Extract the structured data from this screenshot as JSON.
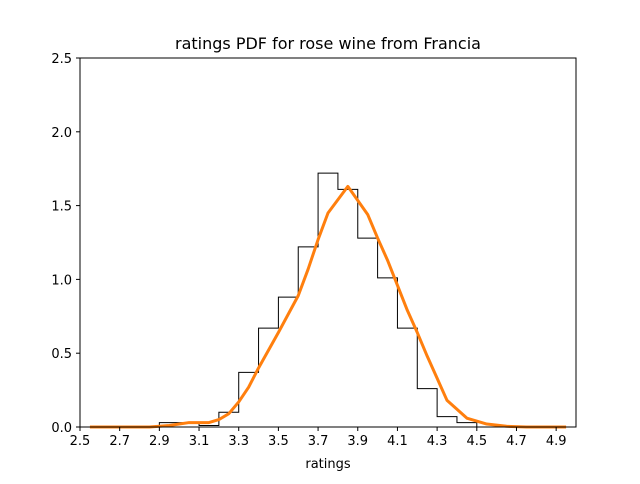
{
  "chart_data": {
    "type": "histogram+line",
    "title": "ratings PDF for rose wine from Francia",
    "xlabel": "ratings",
    "ylabel": "",
    "xlim": [
      2.5,
      5.0
    ],
    "ylim": [
      0,
      2.5
    ],
    "x_ticks": [
      "2.5",
      "2.7",
      "2.9",
      "3.1",
      "3.3",
      "3.5",
      "3.7",
      "3.9",
      "4.1",
      "4.3",
      "4.5",
      "4.7",
      "4.9"
    ],
    "y_ticks": [
      "0.0",
      "0.5",
      "1.0",
      "1.5",
      "2.0",
      "2.5"
    ],
    "grid": false,
    "histogram": {
      "color": "#000000",
      "bin_edges": [
        2.9,
        3.0,
        3.1,
        3.2,
        3.3,
        3.4,
        3.5,
        3.6,
        3.7,
        3.8,
        3.9,
        4.0,
        4.1,
        4.2,
        4.3,
        4.4,
        4.5
      ],
      "densities": [
        0.03,
        0.03,
        0.01,
        0.1,
        0.37,
        0.67,
        0.88,
        1.22,
        1.72,
        1.61,
        1.28,
        1.01,
        0.67,
        0.26,
        0.07,
        0.03
      ]
    },
    "pdf_line": {
      "color": "#ff7f0e",
      "x": [
        2.55,
        2.65,
        2.75,
        2.85,
        2.95,
        3.05,
        3.1,
        3.15,
        3.2,
        3.25,
        3.3,
        3.35,
        3.4,
        3.5,
        3.6,
        3.65,
        3.7,
        3.75,
        3.85,
        3.95,
        4.0,
        4.05,
        4.1,
        4.15,
        4.2,
        4.25,
        4.3,
        4.35,
        4.45,
        4.55,
        4.65,
        4.75,
        4.85,
        4.95
      ],
      "y": [
        0,
        0,
        0,
        0,
        0.01,
        0.03,
        0.03,
        0.03,
        0.05,
        0.09,
        0.17,
        0.27,
        0.4,
        0.64,
        0.89,
        1.07,
        1.27,
        1.45,
        1.63,
        1.44,
        1.28,
        1.13,
        0.96,
        0.79,
        0.64,
        0.48,
        0.33,
        0.18,
        0.06,
        0.02,
        0.005,
        0,
        0,
        0
      ]
    }
  }
}
